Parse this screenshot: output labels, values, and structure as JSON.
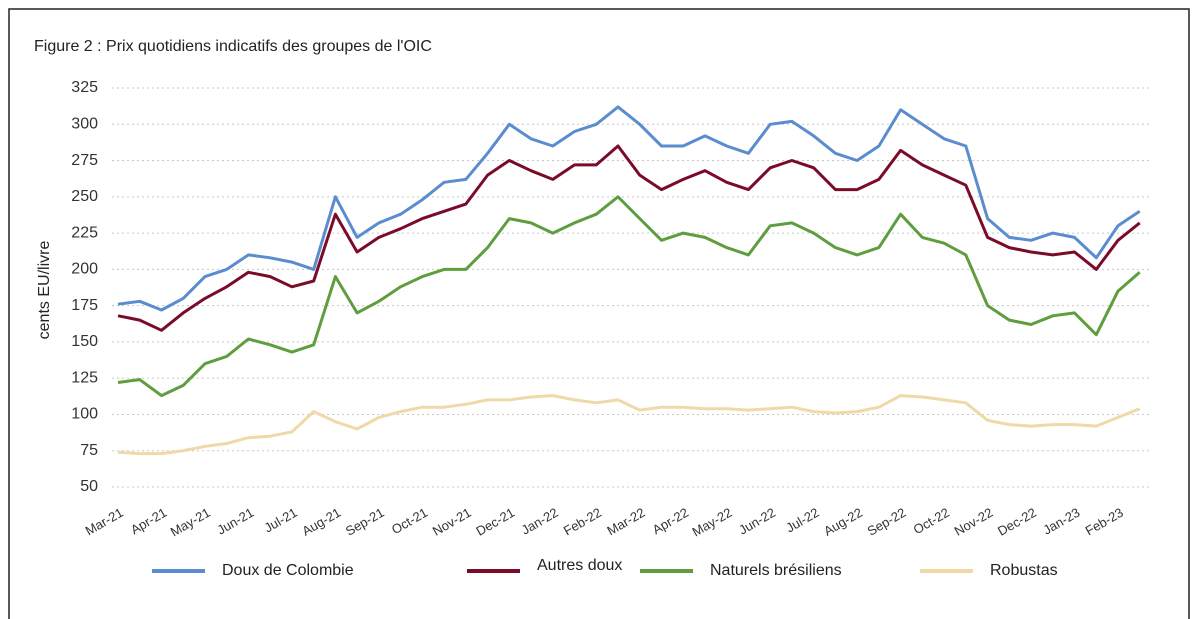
{
  "chart_data": {
    "type": "line",
    "title": "Figure 2 : Prix quotidiens indicatifs des groupes de l'OIC",
    "y_label": "cents EU/livre",
    "categories": [
      "Mar-21",
      null,
      "Apr-21",
      null,
      "May-21",
      null,
      "Jun-21",
      null,
      "Jul-21",
      null,
      "Aug-21",
      null,
      "Sep-21",
      null,
      "Oct-21",
      null,
      "Nov-21",
      null,
      "Dec-21",
      null,
      "Jan-22",
      null,
      "Feb-22",
      null,
      "Mar-22",
      null,
      "Apr-22",
      null,
      "May-22",
      null,
      "Jun-22",
      null,
      "Jul-22",
      null,
      "Aug-22",
      null,
      "Sep-22",
      null,
      "Oct-22",
      null,
      "Nov-22",
      null,
      "Dec-22",
      null,
      "Jan-23",
      null,
      "Feb-23",
      null
    ],
    "series": [
      {
        "name": "Doux de Colombie",
        "color": "#5b8ccf",
        "values": [
          176,
          178,
          172,
          180,
          195,
          200,
          210,
          208,
          205,
          200,
          250,
          222,
          232,
          238,
          248,
          260,
          262,
          280,
          300,
          290,
          285,
          295,
          300,
          312,
          300,
          285,
          285,
          292,
          285,
          280,
          300,
          302,
          292,
          280,
          275,
          285,
          310,
          300,
          290,
          285,
          235,
          222,
          220,
          225,
          222,
          208,
          230,
          240
        ]
      },
      {
        "name": "Autres doux",
        "color": "#7a0c2a",
        "values": [
          168,
          165,
          158,
          170,
          180,
          188,
          198,
          195,
          188,
          192,
          238,
          212,
          222,
          228,
          235,
          240,
          245,
          265,
          275,
          268,
          262,
          272,
          272,
          285,
          265,
          255,
          262,
          268,
          260,
          255,
          270,
          275,
          270,
          255,
          255,
          262,
          282,
          272,
          265,
          258,
          222,
          215,
          212,
          210,
          212,
          200,
          220,
          232
        ]
      },
      {
        "name": "Naturels brésiliens",
        "color": "#5e9e3e",
        "values": [
          122,
          124,
          113,
          120,
          135,
          140,
          152,
          148,
          143,
          148,
          195,
          170,
          178,
          188,
          195,
          200,
          200,
          215,
          235,
          232,
          225,
          232,
          238,
          250,
          235,
          220,
          225,
          222,
          215,
          210,
          230,
          232,
          225,
          215,
          210,
          215,
          238,
          222,
          218,
          210,
          175,
          165,
          162,
          168,
          170,
          155,
          185,
          198
        ]
      },
      {
        "name": "Robustas",
        "color": "#efd9a8",
        "values": [
          74,
          73,
          73,
          75,
          78,
          80,
          84,
          85,
          88,
          102,
          95,
          90,
          98,
          102,
          105,
          105,
          107,
          110,
          110,
          112,
          113,
          110,
          108,
          110,
          103,
          105,
          105,
          104,
          104,
          103,
          104,
          105,
          102,
          101,
          102,
          105,
          113,
          112,
          110,
          108,
          96,
          93,
          92,
          93,
          93,
          92,
          98,
          104
        ]
      }
    ],
    "ylim": [
      50,
      325
    ],
    "yticks": [
      50,
      75,
      100,
      125,
      150,
      175,
      200,
      225,
      250,
      275,
      300,
      325
    ],
    "grid": true,
    "legend": "bottom"
  }
}
